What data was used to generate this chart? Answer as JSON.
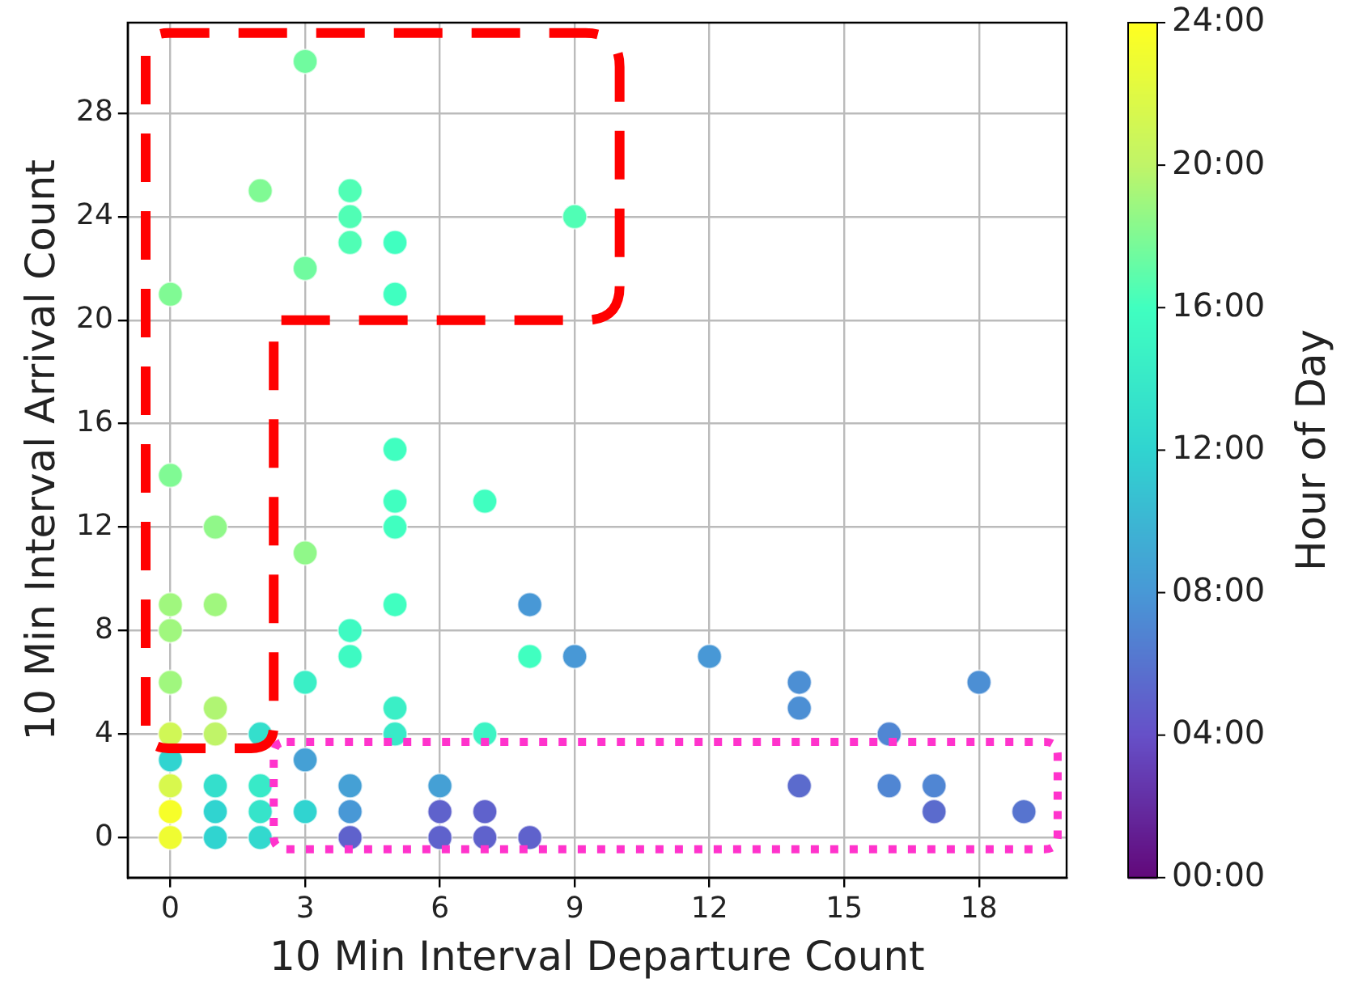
{
  "chart_data": {
    "type": "scatter",
    "xlabel": "10 Min Interval Departure Count",
    "ylabel": "10 Min Interval Arrival Count",
    "clabel": "Hour of Day",
    "xlim": [
      -0.95,
      19.95
    ],
    "ylim": [
      -1.55,
      31.5
    ],
    "xticks": [
      0,
      3,
      6,
      9,
      12,
      15,
      18
    ],
    "yticks": [
      0,
      4,
      8,
      12,
      16,
      20,
      24,
      28
    ],
    "clim": [
      0,
      24
    ],
    "cticks": [
      {
        "value": 0,
        "label": "00:00"
      },
      {
        "value": 4,
        "label": "04:00"
      },
      {
        "value": 8,
        "label": "08:00"
      },
      {
        "value": 12,
        "label": "12:00"
      },
      {
        "value": 16,
        "label": "16:00"
      },
      {
        "value": 20,
        "label": "20:00"
      },
      {
        "value": 24,
        "label": "24:00"
      }
    ],
    "grid": true,
    "marker": "circle",
    "x": [
      3,
      2,
      4,
      4,
      4,
      5,
      5,
      3,
      0,
      9,
      5,
      0,
      5,
      7,
      1,
      5,
      3,
      0,
      1,
      5,
      8,
      0,
      4,
      4,
      8,
      9,
      0,
      3,
      1,
      5,
      0,
      1,
      2,
      5,
      7,
      0,
      3,
      0,
      1,
      2,
      4,
      6,
      0,
      1,
      2,
      3,
      4,
      6,
      7,
      0,
      1,
      2,
      4,
      6,
      7,
      8,
      12,
      14,
      14,
      16,
      18,
      14,
      16,
      17,
      17,
      19
    ],
    "values": [
      30,
      25,
      25,
      24,
      23,
      23,
      21,
      22,
      21,
      24,
      15,
      14,
      13,
      13,
      12,
      12,
      11,
      9,
      9,
      9,
      9,
      8,
      8,
      7,
      7,
      7,
      6,
      6,
      5,
      5,
      4,
      4,
      4,
      4,
      4,
      3,
      3,
      2,
      2,
      2,
      2,
      2,
      1,
      1,
      1,
      1,
      1,
      1,
      1,
      0,
      0,
      0,
      0,
      0,
      0,
      0,
      7,
      6,
      5,
      4,
      6,
      2,
      2,
      2,
      1,
      1
    ],
    "cvalues": [
      17.5,
      18,
      16.5,
      16.5,
      16.5,
      16,
      16,
      17.5,
      18,
      16.5,
      16,
      18,
      16,
      16,
      18.5,
      16,
      18.5,
      19,
      19,
      16,
      8,
      19,
      15.5,
      15.5,
      16,
      8,
      19,
      14.5,
      19.5,
      14.5,
      21,
      20,
      13,
      14,
      15,
      12,
      8.5,
      21.5,
      13,
      14,
      8.5,
      8.5,
      23.5,
      12,
      13.5,
      12,
      8,
      5,
      5,
      23,
      12,
      12.5,
      5,
      5,
      5,
      5,
      8,
      7.5,
      7.5,
      7,
      7.5,
      5.5,
      7,
      7,
      5.5,
      6
    ]
  }
}
